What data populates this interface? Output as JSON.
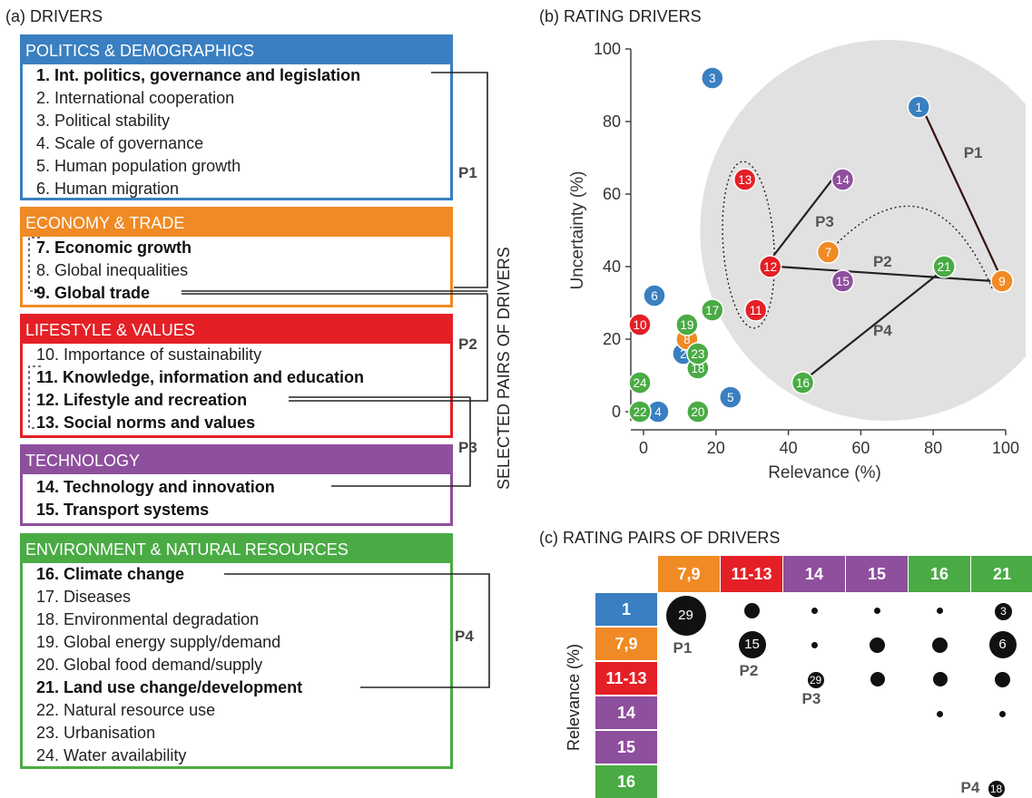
{
  "panel_a": {
    "title": "(a) DRIVERS",
    "groups": [
      {
        "name": "POLITICS & DEMOGRAPHICS",
        "color": "#3a7fc1",
        "items": [
          {
            "label": "1. Int. politics, governance and legislation",
            "bold": true
          },
          {
            "label": "2. International cooperation",
            "bold": false
          },
          {
            "label": "3. Political stability",
            "bold": false
          },
          {
            "label": "4. Scale of governance",
            "bold": false
          },
          {
            "label": "5. Human population growth",
            "bold": false
          },
          {
            "label": "6. Human migration",
            "bold": false
          }
        ]
      },
      {
        "name": "ECONOMY & TRADE",
        "color": "#f08a24",
        "items": [
          {
            "label": "7. Economic growth",
            "bold": true
          },
          {
            "label": "8. Global inequalities",
            "bold": false
          },
          {
            "label": "9. Global trade",
            "bold": true
          }
        ]
      },
      {
        "name": "LIFESTYLE & VALUES",
        "color": "#e42026",
        "items": [
          {
            "label": "10. Importance of sustainability",
            "bold": false
          },
          {
            "label": "11. Knowledge, information and education",
            "bold": true
          },
          {
            "label": "12. Lifestyle and recreation",
            "bold": true
          },
          {
            "label": "13. Social norms and values",
            "bold": true
          }
        ]
      },
      {
        "name": "TECHNOLOGY",
        "color": "#8e4f9d",
        "items": [
          {
            "label": "14. Technology and innovation",
            "bold": true
          },
          {
            "label": "15. Transport systems",
            "bold": true
          }
        ]
      },
      {
        "name": "ENVIRONMENT & NATURAL RESOURCES",
        "color": "#4aab45",
        "items": [
          {
            "label": "16. Climate change",
            "bold": true
          },
          {
            "label": "17. Diseases",
            "bold": false
          },
          {
            "label": "18. Environmental degradation",
            "bold": false
          },
          {
            "label": "19. Global energy supply/demand",
            "bold": false
          },
          {
            "label": "20. Global food demand/supply",
            "bold": false
          },
          {
            "label": "21. Land use change/development",
            "bold": true
          },
          {
            "label": "22. Natural resource use",
            "bold": false
          },
          {
            "label": "23. Urbanisation",
            "bold": false
          },
          {
            "label": "24. Water availability",
            "bold": false
          }
        ]
      }
    ],
    "pair_labels": [
      "P1",
      "P2",
      "P3",
      "P4"
    ],
    "side_label": "SELECTED PAIRS OF DRIVERS"
  },
  "panel_b": {
    "title": "(b) RATING DRIVERS",
    "chart_data": {
      "type": "scatter",
      "xlabel": "Relevance (%)",
      "ylabel": "Uncertainty (%)",
      "xlim": [
        0,
        100
      ],
      "ylim": [
        0,
        100
      ],
      "xticks": [
        "0",
        "20",
        "40",
        "60",
        "80",
        "100"
      ],
      "yticks": [
        "0",
        "20",
        "40",
        "60",
        "80",
        "100"
      ],
      "points": [
        {
          "id": "1",
          "x": 76,
          "y": 84,
          "color": "#3a7fc1"
        },
        {
          "id": "2",
          "x": 11,
          "y": 16,
          "color": "#3a7fc1"
        },
        {
          "id": "3",
          "x": 19,
          "y": 92,
          "color": "#3a7fc1"
        },
        {
          "id": "4",
          "x": 4,
          "y": 0,
          "color": "#3a7fc1"
        },
        {
          "id": "5",
          "x": 24,
          "y": 4,
          "color": "#3a7fc1"
        },
        {
          "id": "6",
          "x": 3,
          "y": 32,
          "color": "#3a7fc1"
        },
        {
          "id": "7",
          "x": 51,
          "y": 44,
          "color": "#f08a24"
        },
        {
          "id": "8",
          "x": 12,
          "y": 20,
          "color": "#f08a24"
        },
        {
          "id": "9",
          "x": 99,
          "y": 36,
          "color": "#f08a24"
        },
        {
          "id": "10",
          "x": -1,
          "y": 24,
          "color": "#e42026"
        },
        {
          "id": "11",
          "x": 31,
          "y": 28,
          "color": "#e42026"
        },
        {
          "id": "12",
          "x": 35,
          "y": 40,
          "color": "#e42026"
        },
        {
          "id": "13",
          "x": 28,
          "y": 64,
          "color": "#e42026"
        },
        {
          "id": "14",
          "x": 55,
          "y": 64,
          "color": "#8e4f9d"
        },
        {
          "id": "15",
          "x": 55,
          "y": 36,
          "color": "#8e4f9d"
        },
        {
          "id": "16",
          "x": 44,
          "y": 8,
          "color": "#4aab45"
        },
        {
          "id": "17",
          "x": 19,
          "y": 28,
          "color": "#4aab45"
        },
        {
          "id": "18",
          "x": 15,
          "y": 12,
          "color": "#4aab45"
        },
        {
          "id": "19",
          "x": 12,
          "y": 24,
          "color": "#4aab45"
        },
        {
          "id": "20",
          "x": 15,
          "y": 0,
          "color": "#4aab45"
        },
        {
          "id": "21",
          "x": 83,
          "y": 40,
          "color": "#4aab45"
        },
        {
          "id": "22",
          "x": -1,
          "y": 0,
          "color": "#4aab45"
        },
        {
          "id": "23",
          "x": 15,
          "y": 16,
          "color": "#4aab45"
        },
        {
          "id": "24",
          "x": -1,
          "y": 8,
          "color": "#4aab45"
        }
      ],
      "pairs": [
        {
          "label": "P1",
          "from": "1",
          "to": "9"
        },
        {
          "label": "P2",
          "from": "12",
          "to": "9"
        },
        {
          "label": "P3",
          "from": "12",
          "to": "14"
        },
        {
          "label": "P4",
          "from": "16",
          "to": "21"
        }
      ]
    }
  },
  "panel_c": {
    "title": "(c) RATING PAIRS OF DRIVERS",
    "ylabel": "Relevance (%)",
    "columns": [
      {
        "label": "7,9",
        "color": "#f08a24"
      },
      {
        "label": "11-13",
        "color": "#e42026"
      },
      {
        "label": "14",
        "color": "#8e4f9d"
      },
      {
        "label": "15",
        "color": "#8e4f9d"
      },
      {
        "label": "16",
        "color": "#4aab45"
      },
      {
        "label": "21",
        "color": "#4aab45"
      }
    ],
    "rows": [
      {
        "label": "1",
        "color": "#3a7fc1"
      },
      {
        "label": "7,9",
        "color": "#f08a24"
      },
      {
        "label": "11-13",
        "color": "#e42026"
      },
      {
        "label": "14",
        "color": "#8e4f9d"
      },
      {
        "label": "15",
        "color": "#8e4f9d"
      },
      {
        "label": "16",
        "color": "#4aab45"
      }
    ],
    "bubbles": [
      {
        "row": 0,
        "col": 0,
        "value": "29",
        "size": "xl",
        "pair": "P1"
      },
      {
        "row": 0,
        "col": 1,
        "value": "",
        "size": "m"
      },
      {
        "row": 0,
        "col": 2,
        "value": "",
        "size": "xs"
      },
      {
        "row": 0,
        "col": 3,
        "value": "",
        "size": "xs"
      },
      {
        "row": 0,
        "col": 4,
        "value": "",
        "size": "xs"
      },
      {
        "row": 0,
        "col": 5,
        "value": "3",
        "size": "m"
      },
      {
        "row": 1,
        "col": 1,
        "value": "15",
        "size": "l",
        "pair": "P2"
      },
      {
        "row": 1,
        "col": 2,
        "value": "",
        "size": "xs"
      },
      {
        "row": 1,
        "col": 3,
        "value": "",
        "size": "m"
      },
      {
        "row": 1,
        "col": 4,
        "value": "",
        "size": "m"
      },
      {
        "row": 1,
        "col": 5,
        "value": "6",
        "size": "l"
      },
      {
        "row": 2,
        "col": 2,
        "value": "29",
        "size": "s",
        "pair": "P3"
      },
      {
        "row": 2,
        "col": 3,
        "value": "",
        "size": "s"
      },
      {
        "row": 2,
        "col": 4,
        "value": "",
        "size": "s"
      },
      {
        "row": 2,
        "col": 5,
        "value": "",
        "size": "m"
      },
      {
        "row": 3,
        "col": 4,
        "value": "",
        "size": "xs"
      },
      {
        "row": 3,
        "col": 5,
        "value": "",
        "size": "xs"
      },
      {
        "row": 5,
        "col": 5,
        "value": "18",
        "size": "s",
        "pair": "P4"
      }
    ]
  }
}
